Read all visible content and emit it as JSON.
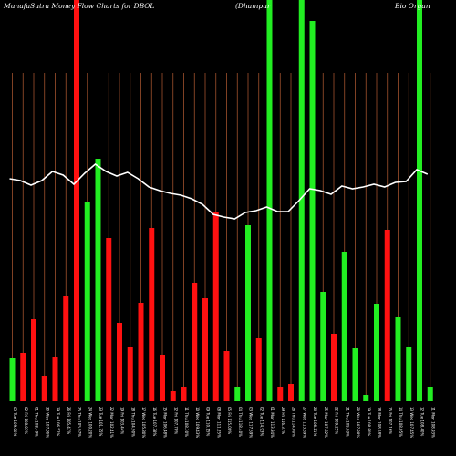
{
  "chart_data": {
    "type": "bar",
    "title_left": "MunafaSutra  Money Flow  Charts for DBOL",
    "title_mid": "(Dhampur",
    "title_right": "Bio Organ",
    "colors": {
      "up": "#22ee22",
      "down": "#ff1111",
      "grid": "#a0522d",
      "line": "#ffffff",
      "background": "#000000"
    },
    "bars": [
      {
        "dir": "up",
        "value": 48,
        "label": "05 Tue 109.00%"
      },
      {
        "dir": "down",
        "value": 53,
        "label": "02 Fri 108.03%"
      },
      {
        "dir": "down",
        "value": 90,
        "label": "01 Thu 108.49%"
      },
      {
        "dir": "down",
        "value": 28,
        "label": "30 Wed 107.95%"
      },
      {
        "dir": "down",
        "value": 49,
        "label": "29 Tue 106.57%"
      },
      {
        "dir": "down",
        "value": 115,
        "label": "26 Fri 105.47%"
      },
      {
        "dir": "down",
        "value": 440,
        "label": "25 Thu 105.97%"
      },
      {
        "dir": "up",
        "value": 219,
        "label": "24 Wed 100.20%"
      },
      {
        "dir": "up",
        "value": 266,
        "label": "23 Tue 101.75%"
      },
      {
        "dir": "down",
        "value": 179,
        "label": "22 Mon 102.41%"
      },
      {
        "dir": "down",
        "value": 86,
        "label": "19 Fri 103.44%"
      },
      {
        "dir": "down",
        "value": 60,
        "label": "18 Thu 104.90%"
      },
      {
        "dir": "down",
        "value": 108,
        "label": "17 Wed 105.80%"
      },
      {
        "dir": "down",
        "value": 190,
        "label": "16 Tue 107.38%"
      },
      {
        "dir": "down",
        "value": 51,
        "label": "15 Mon 106.48%"
      },
      {
        "dir": "down",
        "value": 11,
        "label": "12 Fri 107.70%"
      },
      {
        "dir": "down",
        "value": 16,
        "label": "11 Thu 108.30%"
      },
      {
        "dir": "down",
        "value": 130,
        "label": "10 Wed 109.43%"
      },
      {
        "dir": "down",
        "value": 113,
        "label": "09 Tue 110.15%"
      },
      {
        "dir": "down",
        "value": 207,
        "label": "08 Mon 111.25%"
      },
      {
        "dir": "down",
        "value": 55,
        "label": "05 Fri 115.00%"
      },
      {
        "dir": "up",
        "value": 16,
        "label": "04 Thu 118.40%"
      },
      {
        "dir": "up",
        "value": 193,
        "label": "03 Wed 117.59%"
      },
      {
        "dir": "down",
        "value": 69,
        "label": "02 Tue 114.93%"
      },
      {
        "dir": "up",
        "value": 440,
        "label": "01 Mon 113.94%"
      },
      {
        "dir": "down",
        "value": 16,
        "label": "29 Fri 116.37%"
      },
      {
        "dir": "down",
        "value": 19,
        "label": "28 Thu 114.00%"
      },
      {
        "dir": "up",
        "value": 440,
        "label": "27 Wed 113.69%"
      },
      {
        "dir": "up",
        "value": 417,
        "label": "26 Tue 108.21%"
      },
      {
        "dir": "up",
        "value": 120,
        "label": "25 Mon 107.82%"
      },
      {
        "dir": "down",
        "value": 74,
        "label": "22 Fri 109.25%"
      },
      {
        "dir": "up",
        "value": 164,
        "label": "21 Thu 105.93%"
      },
      {
        "dir": "up",
        "value": 58,
        "label": "20 Wed 107.08%"
      },
      {
        "dir": "up",
        "value": 7,
        "label": "19 Tue 108.80%"
      },
      {
        "dir": "up",
        "value": 107,
        "label": "18 Mon 108.18%"
      },
      {
        "dir": "down",
        "value": 188,
        "label": "15 Fri 107.16%"
      },
      {
        "dir": "up",
        "value": 92,
        "label": "14 Thu 108.05%"
      },
      {
        "dir": "up",
        "value": 60,
        "label": "13 Wed 107.45%"
      },
      {
        "dir": "up",
        "value": 440,
        "label": "12 Tue 108.40%"
      },
      {
        "dir": "up",
        "value": 16,
        "label": "11 Mon 108.93%"
      }
    ],
    "line_values": [
      244,
      242,
      237,
      242,
      252,
      248,
      238,
      250,
      260,
      252,
      247,
      251,
      244,
      235,
      231,
      228,
      226,
      222,
      216,
      205,
      202,
      200,
      207,
      209,
      213,
      208,
      208,
      220,
      233,
      231,
      227,
      236,
      233,
      235,
      238,
      235,
      240,
      241,
      254,
      249
    ]
  }
}
